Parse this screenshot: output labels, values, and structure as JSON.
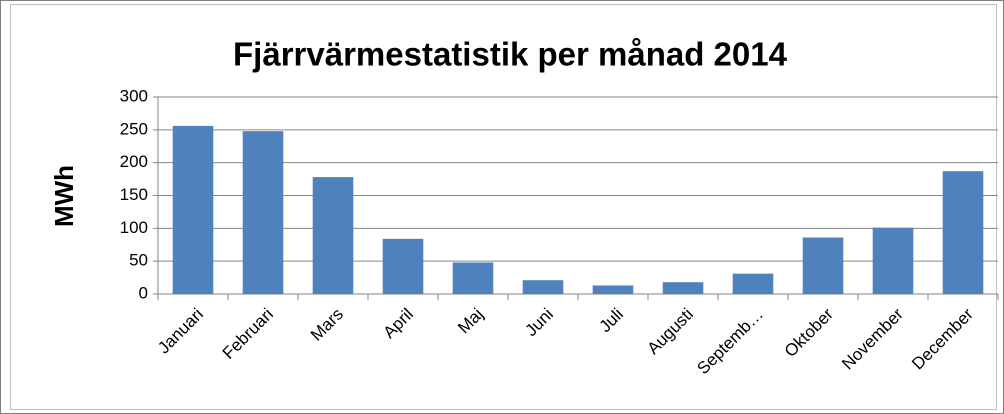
{
  "chart_data": {
    "type": "bar",
    "title": "Fjärrvärmestatistik per månad 2014",
    "y_label": "MWh",
    "categories": [
      "Januari",
      "Februari",
      "Mars",
      "April",
      "Maj",
      "Juni",
      "Juli",
      "Augusti",
      "Septemb…",
      "Oktober",
      "November",
      "December"
    ],
    "values": [
      256,
      248,
      178,
      84,
      48,
      21,
      13,
      18,
      31,
      86,
      101,
      187
    ],
    "color": "#4f81bd",
    "ylim": [
      0,
      300
    ],
    "yticks": [
      0,
      50,
      100,
      150,
      200,
      250,
      300
    ],
    "grid": true
  }
}
